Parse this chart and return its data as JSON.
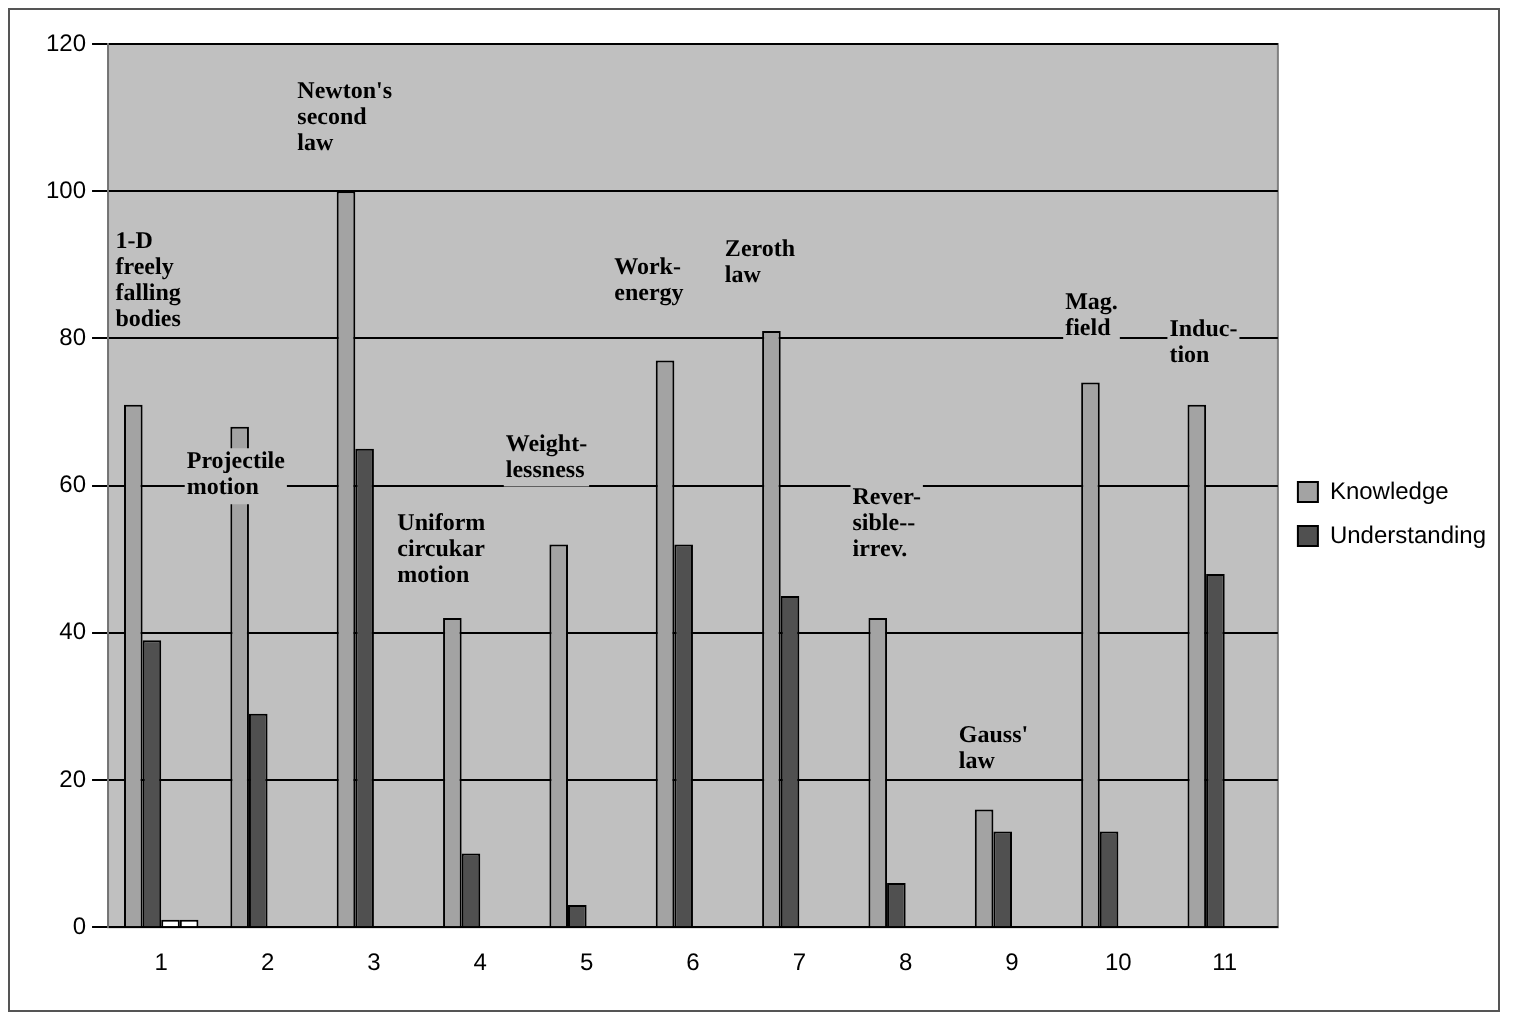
{
  "chart_data": {
    "type": "bar",
    "categories": [
      "1",
      "2",
      "3",
      "4",
      "5",
      "6",
      "7",
      "8",
      "9",
      "10",
      "11"
    ],
    "series": [
      {
        "name": "Knowledge",
        "color": "#a3a3a3",
        "values": [
          71,
          68,
          100,
          42,
          52,
          77,
          81,
          42,
          16,
          74,
          71
        ]
      },
      {
        "name": "Understanding",
        "color": "#505050",
        "values": [
          39,
          29,
          65,
          10,
          3,
          52,
          45,
          6,
          13,
          13,
          48
        ]
      },
      {
        "color": "#ffffff",
        "values": [
          1,
          null,
          null,
          null,
          null,
          null,
          null,
          null,
          null,
          null,
          null
        ]
      },
      {
        "color": "#ffffff",
        "values": [
          1,
          null,
          null,
          null,
          null,
          null,
          null,
          null,
          null,
          null,
          null
        ]
      }
    ],
    "ylim": [
      0,
      120
    ],
    "yticks": [
      0,
      20,
      40,
      60,
      80,
      100,
      120
    ],
    "grid": "y",
    "legend": "right",
    "annotations": [
      "1-D\nfreely\nfalling\nbodies",
      "Projectile\nmotion",
      "Newton's\nsecond\nlaw",
      "Uniform\ncircukar\nmotion",
      "Weight-\nlessness",
      "Work-\nenergy",
      "Zeroth\nlaw",
      "Rever-\nsible--\nirrev.",
      "Gauss'\nlaw",
      "Mag.\nfield",
      "Induc-\ntion"
    ]
  }
}
